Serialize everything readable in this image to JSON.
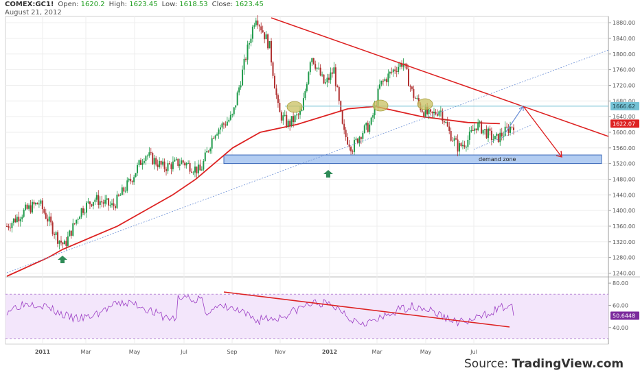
{
  "header": {
    "symbol": "COMEX:GC1!",
    "open_label": "Open:",
    "open": "1620.2",
    "high_label": "High:",
    "high": "1623.45",
    "low_label": "Low:",
    "low": "1618.53",
    "close_label": "Close:",
    "close": "1623.45",
    "date": "August 21, 2012"
  },
  "footer": {
    "prefix": "Source: ",
    "brand": "TradingView.com"
  },
  "colors": {
    "candle_up": "#1f9a4a",
    "candle_down": "#b03030",
    "ma": "#dd2222",
    "trend": "#dd2222",
    "rsi_line": "#9b3cc4",
    "rsi_band": "#f3e6fb",
    "zone": "#b3cdf2",
    "marker_arrow": "#2e8b57",
    "circle": "#c9c060"
  },
  "chart_data": [
    {
      "type": "candlestick",
      "title": "",
      "xlabel": "",
      "ylabel": "",
      "x_tick_labels": [
        "2011",
        "Mar",
        "May",
        "Jul",
        "Sep",
        "Nov",
        "2012",
        "Mar",
        "May",
        "Jul"
      ],
      "y_ticks": [
        1240,
        1280,
        1320,
        1360,
        1400,
        1440,
        1480,
        1520,
        1560,
        1600,
        1640,
        1680,
        1720,
        1760,
        1800,
        1840,
        1880
      ],
      "y_tick_labels": [
        "1240.00",
        "1280.00",
        "1320.00",
        "1360.00",
        "1400.00",
        "1440.00",
        "1480.00",
        "1520.00",
        "1560.00",
        "1600.00",
        "1640.00",
        "1680.00",
        "1720.00",
        "1760.00",
        "1800.00",
        "1840.00",
        "1880.00"
      ],
      "ylim": [
        1232,
        1896
      ],
      "price_path": [
        [
          0,
          1360
        ],
        [
          0.04,
          1400
        ],
        [
          0.07,
          1420
        ],
        [
          0.11,
          1330
        ],
        [
          0.125,
          1310
        ],
        [
          0.16,
          1400
        ],
        [
          0.19,
          1430
        ],
        [
          0.23,
          1410
        ],
        [
          0.27,
          1480
        ],
        [
          0.3,
          1545
        ],
        [
          0.34,
          1510
        ],
        [
          0.38,
          1525
        ],
        [
          0.42,
          1500
        ],
        [
          0.45,
          1600
        ],
        [
          0.49,
          1640
        ],
        [
          0.52,
          1800
        ],
        [
          0.54,
          1900
        ],
        [
          0.57,
          1820
        ],
        [
          0.59,
          1650
        ],
        [
          0.61,
          1620
        ],
        [
          0.64,
          1650
        ],
        [
          0.66,
          1800
        ],
        [
          0.69,
          1720
        ],
        [
          0.71,
          1760
        ],
        [
          0.73,
          1600
        ],
        [
          0.75,
          1560
        ],
        [
          0.77,
          1600
        ],
        [
          0.79,
          1620
        ],
        [
          0.81,
          1720
        ],
        [
          0.84,
          1760
        ],
        [
          0.86,
          1780
        ],
        [
          0.88,
          1700
        ],
        [
          0.9,
          1660
        ],
        [
          0.92,
          1640
        ],
        [
          0.94,
          1660
        ],
        [
          0.96,
          1600
        ],
        [
          0.98,
          1560
        ],
        [
          1.0,
          1580
        ],
        [
          1.02,
          1620
        ],
        [
          1.04,
          1600
        ],
        [
          1.06,
          1580
        ],
        [
          1.08,
          1600
        ],
        [
          1.1,
          1620
        ]
      ],
      "candles_x_ratio_note": "",
      "last_close": 1623.45,
      "price_labels": [
        {
          "value": 1666.62,
          "text": "1666.62"
        },
        {
          "value": 1622.07,
          "text": "1622.07"
        }
      ],
      "moving_average": [
        [
          1232,
          0
        ],
        [
          1280,
          0.09
        ],
        [
          1300,
          0.12
        ],
        [
          1360,
          0.24
        ],
        [
          1400,
          0.3
        ],
        [
          1440,
          0.36
        ],
        [
          1480,
          0.41
        ],
        [
          1520,
          0.45
        ],
        [
          1560,
          0.49
        ],
        [
          1600,
          0.55
        ],
        [
          1620,
          0.63
        ],
        [
          1660,
          0.74
        ],
        [
          1666,
          0.8
        ],
        [
          1640,
          0.9
        ],
        [
          1625,
          1.0
        ],
        [
          1622,
          1.07
        ]
      ],
      "annotations": {
        "demand_zone_label": "demand zone",
        "demand_zone": [
          1520,
          1542
        ],
        "resistance_level": 1666.62
      }
    },
    {
      "type": "line",
      "title": "",
      "xlabel": "",
      "ylabel": "",
      "y_ticks": [
        40,
        60,
        80
      ],
      "y_tick_labels": [
        "40.00",
        "60.00",
        "80.00"
      ],
      "ylim": [
        25,
        85
      ],
      "band": [
        30,
        70
      ],
      "last_value": 50.6448,
      "last_label": "50.6448"
    }
  ]
}
